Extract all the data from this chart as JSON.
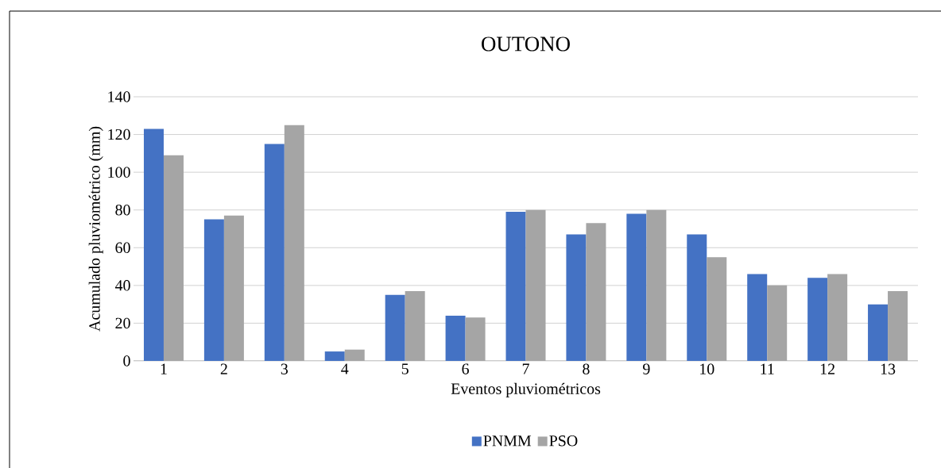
{
  "chart_data": {
    "type": "bar",
    "title": "OUTONO",
    "xlabel": "Eventos pluviométricos",
    "ylabel": "Acumulado pluviométrico (mm)",
    "categories": [
      "1",
      "2",
      "3",
      "4",
      "5",
      "6",
      "7",
      "8",
      "9",
      "10",
      "11",
      "12",
      "13"
    ],
    "series": [
      {
        "name": "PNMM",
        "color": "#4472c4",
        "values": [
          123,
          75,
          115,
          5,
          35,
          24,
          79,
          67,
          78,
          67,
          46,
          44,
          30
        ]
      },
      {
        "name": "PSO",
        "color": "#a5a5a5",
        "values": [
          109,
          77,
          125,
          6,
          37,
          23,
          80,
          73,
          80,
          55,
          40,
          46,
          37
        ]
      }
    ],
    "ylim": [
      0,
      140
    ],
    "yticks": [
      0,
      20,
      40,
      60,
      80,
      100,
      120,
      140
    ],
    "grid": "y",
    "legend": "bottom"
  }
}
